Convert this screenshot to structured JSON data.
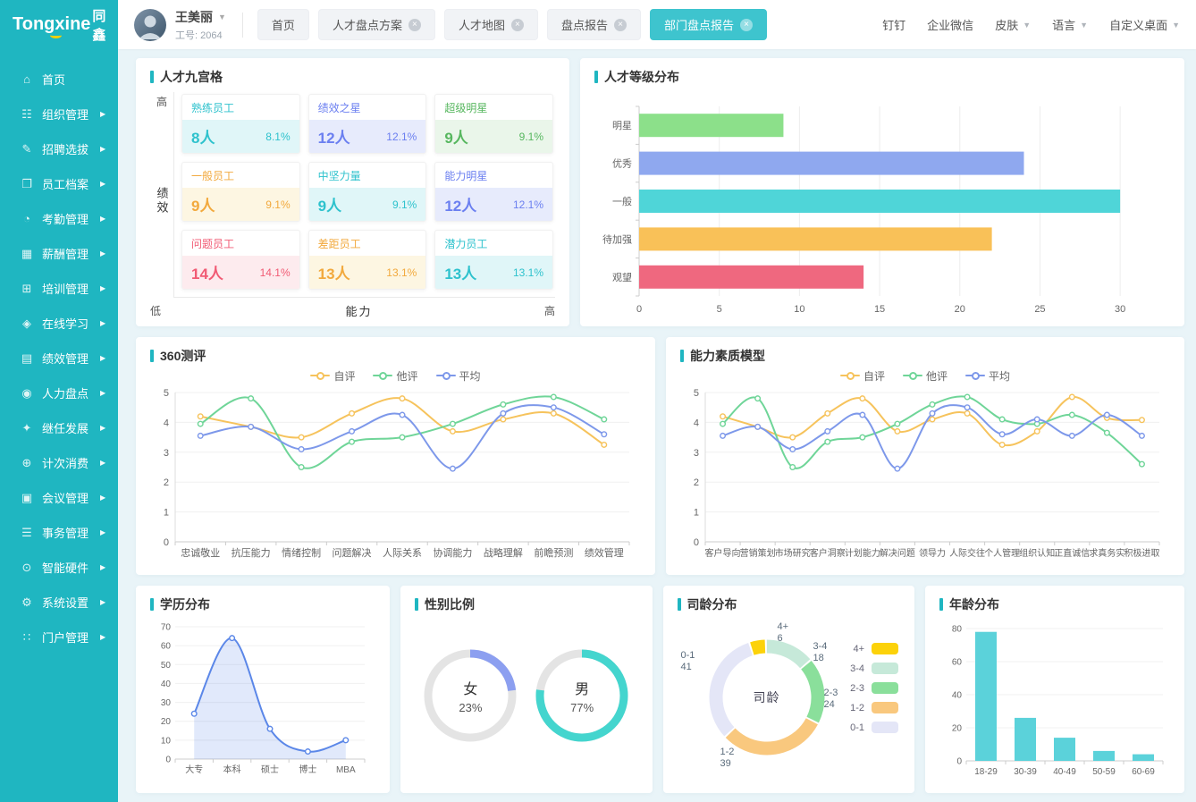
{
  "brand": {
    "name": "Tongxine",
    "suffix": "同鑫"
  },
  "user": {
    "name": "王美丽",
    "employee_id": "工号: 2064"
  },
  "header": {
    "tabs": [
      {
        "key": "home",
        "label": "首页",
        "closable": false,
        "active": false
      },
      {
        "key": "talent-plan",
        "label": "人才盘点方案",
        "closable": true,
        "active": false
      },
      {
        "key": "talent-map",
        "label": "人才地图",
        "closable": true,
        "active": false
      },
      {
        "key": "review-report",
        "label": "盘点报告",
        "closable": true,
        "active": false
      },
      {
        "key": "dept-review-report",
        "label": "部门盘点报告",
        "closable": true,
        "active": true
      }
    ],
    "quick_links": [
      {
        "key": "dingtalk",
        "label": "钉钉",
        "dropdown": false
      },
      {
        "key": "wecom",
        "label": "企业微信",
        "dropdown": false
      },
      {
        "key": "skin",
        "label": "皮肤",
        "dropdown": true
      },
      {
        "key": "language",
        "label": "语言",
        "dropdown": true
      },
      {
        "key": "custom-desktop",
        "label": "自定义桌面",
        "dropdown": true
      }
    ]
  },
  "sidebar": {
    "items": [
      {
        "key": "home",
        "label": "首页",
        "icon": "home-icon",
        "expandable": false
      },
      {
        "key": "org",
        "label": "组织管理",
        "icon": "org-icon",
        "expandable": true
      },
      {
        "key": "recruit",
        "label": "招聘选拔",
        "icon": "recruit-icon",
        "expandable": true
      },
      {
        "key": "archive",
        "label": "员工档案",
        "icon": "archive-icon",
        "expandable": true
      },
      {
        "key": "attendance",
        "label": "考勤管理",
        "icon": "attendance-icon",
        "expandable": true
      },
      {
        "key": "salary",
        "label": "薪酬管理",
        "icon": "salary-icon",
        "expandable": true
      },
      {
        "key": "training",
        "label": "培训管理",
        "icon": "training-icon",
        "expandable": true
      },
      {
        "key": "elearning",
        "label": "在线学习",
        "icon": "elearning-icon",
        "expandable": true
      },
      {
        "key": "performance",
        "label": "绩效管理",
        "icon": "performance-icon",
        "expandable": true
      },
      {
        "key": "talent-review",
        "label": "人力盘点",
        "icon": "talent-review-icon",
        "expandable": true
      },
      {
        "key": "succession",
        "label": "继任发展",
        "icon": "succession-icon",
        "expandable": true
      },
      {
        "key": "consumption",
        "label": "计次消费",
        "icon": "consumption-icon",
        "expandable": true
      },
      {
        "key": "meeting",
        "label": "会议管理",
        "icon": "meeting-icon",
        "expandable": true
      },
      {
        "key": "affairs",
        "label": "事务管理",
        "icon": "affairs-icon",
        "expandable": true
      },
      {
        "key": "hardware",
        "label": "智能硬件",
        "icon": "hardware-icon",
        "expandable": true
      },
      {
        "key": "settings",
        "label": "系统设置",
        "icon": "settings-icon",
        "expandable": true
      },
      {
        "key": "portal",
        "label": "门户管理",
        "icon": "portal-icon",
        "expandable": true
      }
    ]
  },
  "panels": {
    "nine_grid": {
      "title": "人才九宫格",
      "axis": {
        "y_high": "高",
        "y_label": "绩效",
        "y_low": "低",
        "x_label": "能力",
        "x_high": "高"
      },
      "cells": [
        {
          "key": "skilled",
          "name": "熟练员工",
          "count": "8人",
          "pct": "8.1%",
          "color": "#2ec2cd",
          "bg": "#e0f6f8"
        },
        {
          "key": "perf-star",
          "name": "绩效之星",
          "count": "12人",
          "pct": "12.1%",
          "color": "#6b7ff0",
          "bg": "#e7ebfc"
        },
        {
          "key": "super-star",
          "name": "超级明星",
          "count": "9人",
          "pct": "9.1%",
          "color": "#57b75f",
          "bg": "#eaf6ea"
        },
        {
          "key": "general",
          "name": "一般员工",
          "count": "9人",
          "pct": "9.1%",
          "color": "#f2a93d",
          "bg": "#fdf6e2"
        },
        {
          "key": "backbone",
          "name": "中坚力量",
          "count": "9人",
          "pct": "9.1%",
          "color": "#2ec2cd",
          "bg": "#e0f6f8"
        },
        {
          "key": "ability-star",
          "name": "能力明星",
          "count": "12人",
          "pct": "12.1%",
          "color": "#6b7ff0",
          "bg": "#e7ebfc"
        },
        {
          "key": "problem",
          "name": "问题员工",
          "count": "14人",
          "pct": "14.1%",
          "color": "#f15b74",
          "bg": "#fdebee"
        },
        {
          "key": "gap",
          "name": "差距员工",
          "count": "13人",
          "pct": "13.1%",
          "color": "#f2a93d",
          "bg": "#fdf6e2"
        },
        {
          "key": "potential",
          "name": "潜力员工",
          "count": "13人",
          "pct": "13.1%",
          "color": "#2ec2cd",
          "bg": "#e0f6f8"
        }
      ]
    },
    "talent_level": {
      "title": "人才等级分布"
    },
    "assess360": {
      "title": "360测评"
    },
    "competency": {
      "title": "能力素质模型"
    },
    "education": {
      "title": "学历分布"
    },
    "gender": {
      "title": "性别比例"
    },
    "tenure": {
      "title": "司龄分布",
      "center_label": "司龄"
    },
    "age": {
      "title": "年龄分布"
    }
  },
  "chart_data": [
    {
      "id": "talent_level",
      "type": "bar",
      "orientation": "horizontal",
      "title": "人才等级分布",
      "categories": [
        "明星",
        "优秀",
        "一般",
        "待加强",
        "观望"
      ],
      "values": [
        9,
        24,
        30,
        22,
        14
      ],
      "colors": [
        "#8ce08a",
        "#8fa8ef",
        "#4fd5d8",
        "#f9c158",
        "#ef687f"
      ],
      "xlim": [
        0,
        32
      ],
      "x_ticks": [
        0,
        5,
        10,
        15,
        20,
        25,
        30
      ],
      "grid": true
    },
    {
      "id": "assess360",
      "type": "line",
      "title": "360测评",
      "categories": [
        "忠诚敬业",
        "抗压能力",
        "情绪控制",
        "问题解决",
        "人际关系",
        "协调能力",
        "战略理解",
        "前瞻预测",
        "绩效管理"
      ],
      "ylim": [
        0,
        5
      ],
      "y_ticks": [
        0,
        1,
        2,
        3,
        4,
        5
      ],
      "grid": true,
      "legend_position": "top",
      "series": [
        {
          "name": "自评",
          "color": "#f6c35c",
          "values": [
            4.2,
            3.85,
            3.5,
            4.3,
            4.8,
            3.7,
            4.1,
            4.3,
            3.25
          ]
        },
        {
          "name": "他评",
          "color": "#6fd598",
          "values": [
            3.95,
            4.8,
            2.5,
            3.35,
            3.5,
            3.95,
            4.6,
            4.85,
            4.1
          ]
        },
        {
          "name": "平均",
          "color": "#7d98ea",
          "values": [
            3.55,
            3.85,
            3.1,
            3.7,
            4.25,
            2.45,
            4.3,
            4.5,
            3.6
          ]
        }
      ]
    },
    {
      "id": "competency",
      "type": "line",
      "title": "能力素质模型",
      "categories": [
        "客户导向",
        "营销策划",
        "市场研究",
        "客户洞察",
        "计划能力",
        "解决问题",
        "领导力",
        "人际交往",
        "个人管理",
        "组织认知",
        "正直诚信",
        "求真务实",
        "积极进取"
      ],
      "ylim": [
        0,
        5
      ],
      "y_ticks": [
        0,
        1,
        2,
        3,
        4,
        5
      ],
      "grid": true,
      "legend_position": "top",
      "series": [
        {
          "name": "自评",
          "color": "#f6c35c",
          "values": [
            4.2,
            3.85,
            3.5,
            4.3,
            4.8,
            3.7,
            4.1,
            4.3,
            3.25,
            3.7,
            4.85,
            4.15,
            4.08
          ]
        },
        {
          "name": "他评",
          "color": "#6fd598",
          "values": [
            3.95,
            4.8,
            2.5,
            3.35,
            3.5,
            3.95,
            4.6,
            4.85,
            4.1,
            3.95,
            4.25,
            3.65,
            2.6
          ]
        },
        {
          "name": "平均",
          "color": "#7d98ea",
          "values": [
            3.55,
            3.85,
            3.1,
            3.7,
            4.25,
            2.45,
            4.3,
            4.5,
            3.6,
            4.1,
            3.55,
            4.25,
            3.55
          ]
        }
      ]
    },
    {
      "id": "education",
      "type": "area",
      "title": "学历分布",
      "categories": [
        "大专",
        "本科",
        "硕士",
        "博士",
        "MBA"
      ],
      "values": [
        24,
        64,
        16,
        4,
        10
      ],
      "color": "#5b87e8",
      "fill": "rgba(91,135,232,0.18)",
      "ylim": [
        0,
        70
      ],
      "y_ticks": [
        0,
        10,
        20,
        30,
        40,
        50,
        60,
        70
      ],
      "grid": true
    },
    {
      "id": "gender",
      "type": "donut",
      "title": "性别比例",
      "track_color": "#e4e4e4",
      "items": [
        {
          "label": "女",
          "value": 23,
          "value_label": "23%",
          "color": "#8c9ff0"
        },
        {
          "label": "男",
          "value": 77,
          "value_label": "77%",
          "color": "#44d5ce"
        }
      ]
    },
    {
      "id": "tenure",
      "type": "donut",
      "title": "司龄分布",
      "center_label": "司龄",
      "legend_position": "right",
      "segments": [
        {
          "label": "4+",
          "value": 6,
          "color": "#fcd20a"
        },
        {
          "label": "3-4",
          "value": 18,
          "color": "#c6e9d9"
        },
        {
          "label": "2-3",
          "value": 24,
          "color": "#8adf9b"
        },
        {
          "label": "1-2",
          "value": 39,
          "color": "#f9c87e"
        },
        {
          "label": "0-1",
          "value": 41,
          "color": "#e4e6f7"
        }
      ]
    },
    {
      "id": "age",
      "type": "bar",
      "orientation": "vertical",
      "title": "年龄分布",
      "categories": [
        "18-29",
        "30-39",
        "40-49",
        "50-59",
        "60-69"
      ],
      "values": [
        78,
        26,
        14,
        6,
        4
      ],
      "color": "#5bd2da",
      "ylim": [
        0,
        80
      ],
      "y_ticks": [
        0,
        20,
        40,
        60,
        80
      ],
      "grid": true
    }
  ]
}
